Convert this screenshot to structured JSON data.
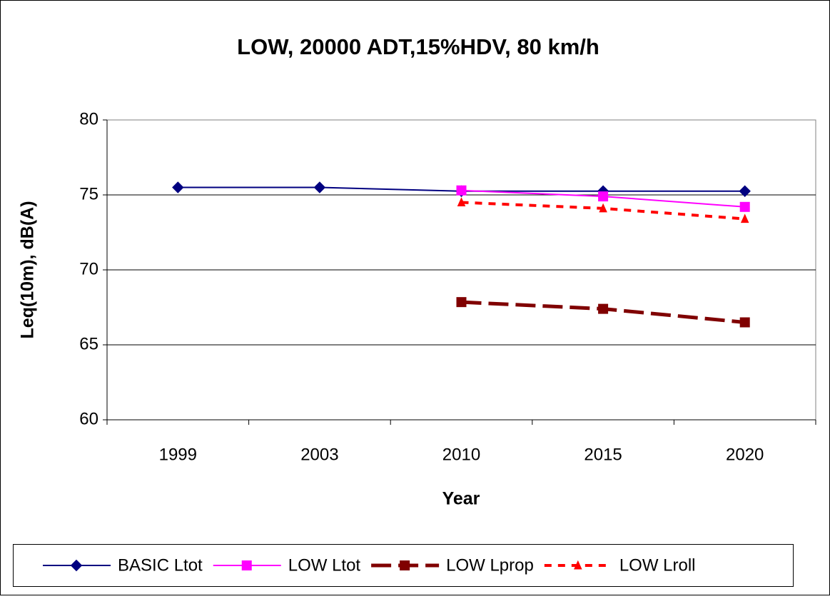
{
  "chart_data": {
    "type": "line",
    "title": "LOW, 20000 ADT,15%HDV, 80 km/h",
    "x_label": "Year",
    "y_label": "Leq(10m), dB(A)",
    "categories": [
      "1999",
      "2003",
      "2010",
      "2015",
      "2020"
    ],
    "series": [
      {
        "name": "BASIC Ltot",
        "color": "#000080",
        "marker": "diamond",
        "dash": "solid",
        "values": [
          75.5,
          75.5,
          75.25,
          75.25,
          75.25
        ]
      },
      {
        "name": "LOW Ltot",
        "color": "#ff00ff",
        "marker": "square",
        "dash": "solid",
        "values": [
          null,
          null,
          75.3,
          74.9,
          74.2
        ]
      },
      {
        "name": "LOW Lprop",
        "color": "#800000",
        "marker": "square",
        "dash": "dashed",
        "values": [
          null,
          null,
          67.85,
          67.4,
          66.5
        ]
      },
      {
        "name": "LOW Lroll",
        "color": "#ff0000",
        "marker": "triangle",
        "dash": "dotted",
        "values": [
          null,
          null,
          74.5,
          74.1,
          73.4
        ]
      }
    ],
    "ylim": [
      60,
      80
    ],
    "yticks": [
      60,
      65,
      70,
      75,
      80
    ],
    "grid": true,
    "legend": "bottom"
  }
}
